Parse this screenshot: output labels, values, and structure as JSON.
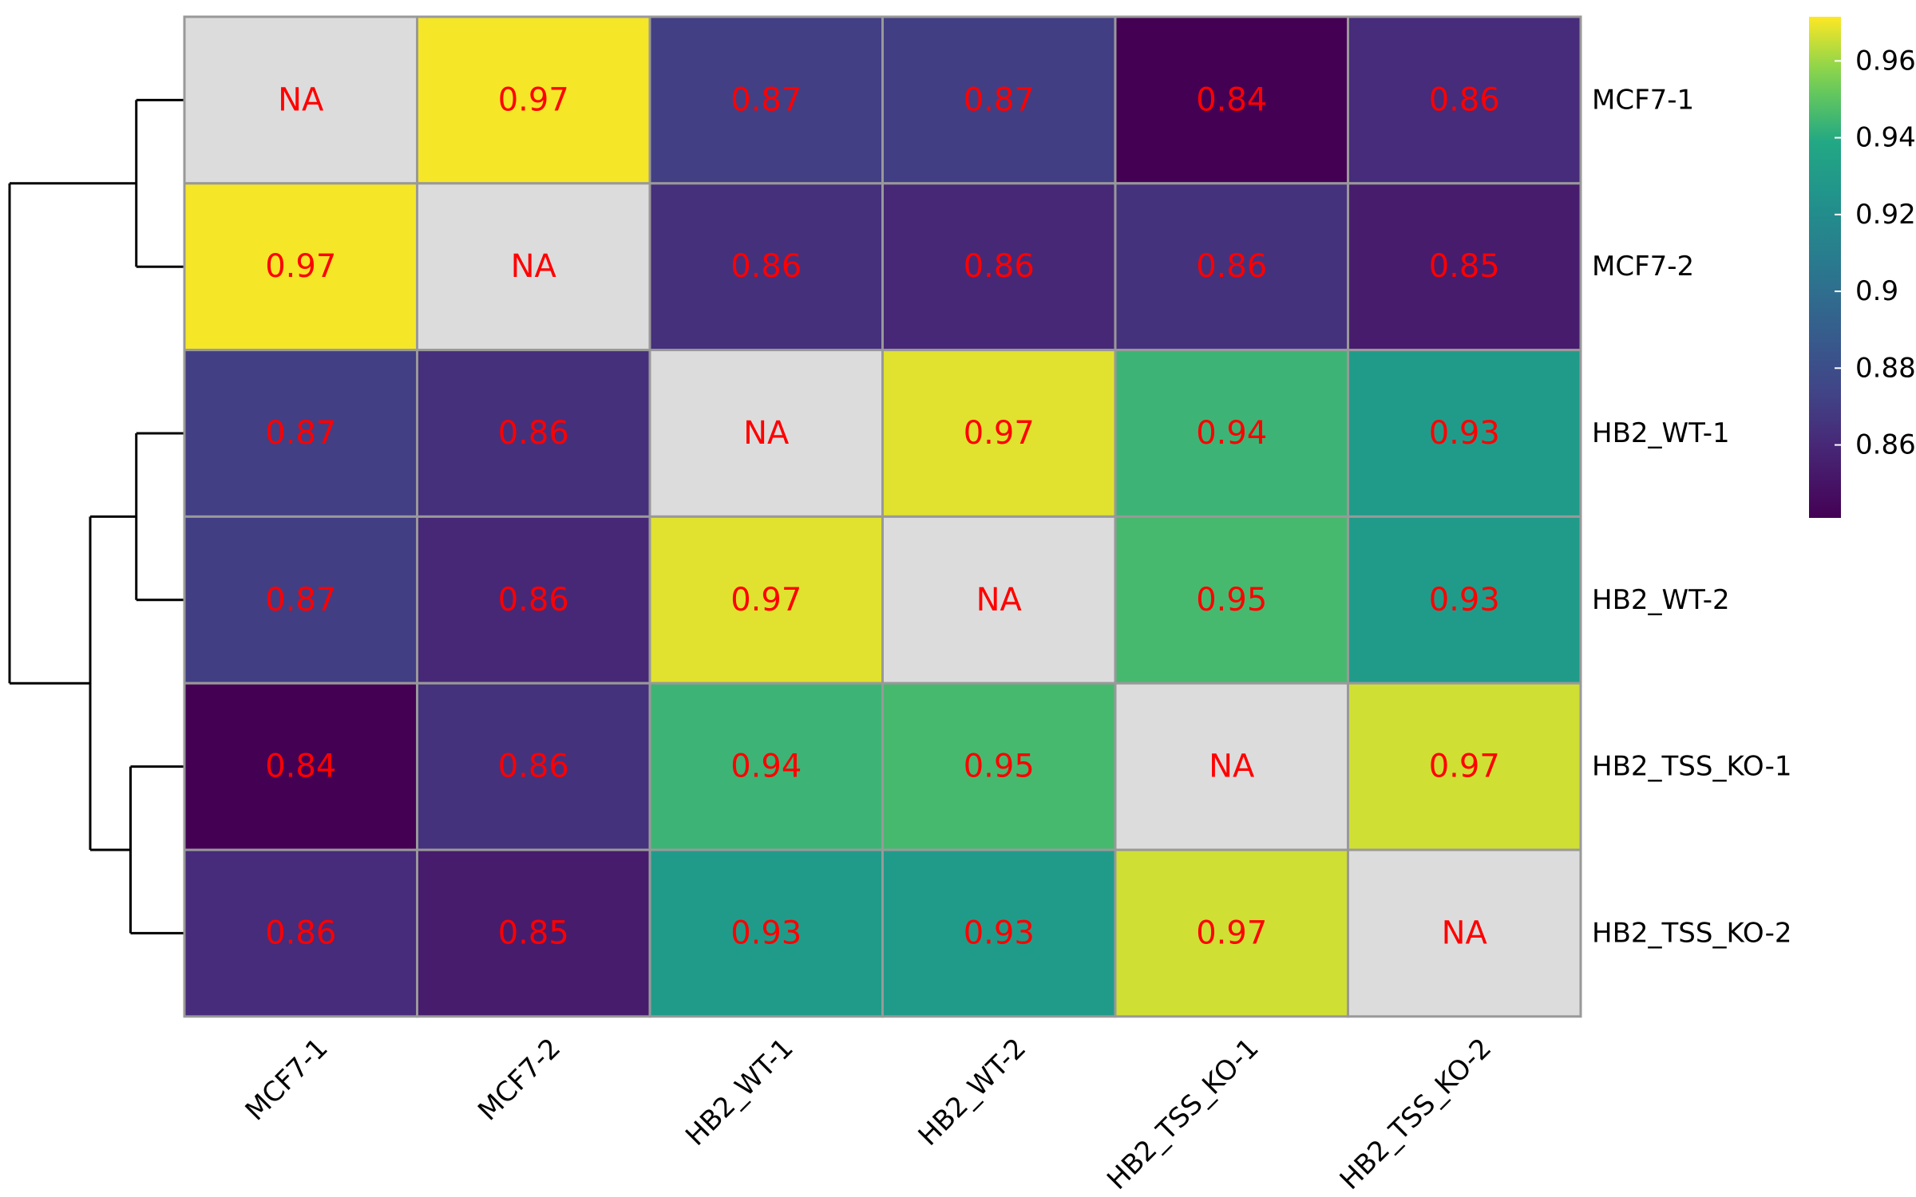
{
  "chart_data": {
    "type": "heatmap",
    "rows": [
      "MCF7-1",
      "MCF7-2",
      "HB2_WT-1",
      "HB2_WT-2",
      "HB2_TSS_KO-1",
      "HB2_TSS_KO-2"
    ],
    "columns": [
      "MCF7-1",
      "MCF7-2",
      "HB2_WT-1",
      "HB2_WT-2",
      "HB2_TSS_KO-1",
      "HB2_TSS_KO-2"
    ],
    "values": [
      [
        null,
        0.9705,
        0.8712,
        0.8706,
        0.841,
        0.862
      ],
      [
        0.9705,
        null,
        0.864,
        0.86,
        0.865,
        0.854
      ],
      [
        0.8712,
        0.864,
        null,
        0.968,
        0.944,
        0.93
      ],
      [
        0.8706,
        0.86,
        0.968,
        null,
        0.946,
        0.93
      ],
      [
        0.841,
        0.865,
        0.944,
        0.946,
        null,
        0.966
      ],
      [
        0.862,
        0.854,
        0.93,
        0.93,
        0.966,
        null
      ]
    ],
    "cell_labels": [
      [
        "NA",
        "0.97",
        "0.87",
        "0.87",
        "0.84",
        "0.86"
      ],
      [
        "0.97",
        "NA",
        "0.86",
        "0.86",
        "0.86",
        "0.85"
      ],
      [
        "0.87",
        "0.86",
        "NA",
        "0.97",
        "0.94",
        "0.93"
      ],
      [
        "0.87",
        "0.86",
        "0.97",
        "NA",
        "0.95",
        "0.93"
      ],
      [
        "0.84",
        "0.86",
        "0.94",
        "0.95",
        "NA",
        "0.97"
      ],
      [
        "0.86",
        "0.85",
        "0.93",
        "0.93",
        "0.97",
        "NA"
      ]
    ],
    "na_color": "#dcdcdc",
    "cell_text_color": "#ff0000",
    "colormap": "viridis",
    "colorbar": {
      "range": [
        0.841,
        0.9715
      ],
      "ticks": [
        0.86,
        0.88,
        0.9,
        0.92,
        0.94,
        0.96
      ],
      "tick_labels": [
        "0.86",
        "0.88",
        "0.9",
        "0.92",
        "0.94",
        "0.96"
      ],
      "placement": "right"
    },
    "row_dendrogram": {
      "side": "left",
      "merges": [
        {
          "left": "MCF7-1",
          "right": "MCF7-2",
          "height": 0.03
        },
        {
          "left": "HB2_WT-1",
          "right": "HB2_WT-2",
          "height": 0.03
        },
        {
          "left": "HB2_TSS_KO-1",
          "right": "HB2_TSS_KO-2",
          "height": 0.035
        },
        {
          "left": "HB2_WT-1|HB2_WT-2",
          "right": "HB2_TSS_KO-1|HB2_TSS_KO-2",
          "height": 0.07
        },
        {
          "left": "MCF7-1|MCF7-2",
          "right": "HB2_*",
          "height": 0.14
        }
      ]
    },
    "title": "",
    "xlabel": "",
    "ylabel": ""
  }
}
